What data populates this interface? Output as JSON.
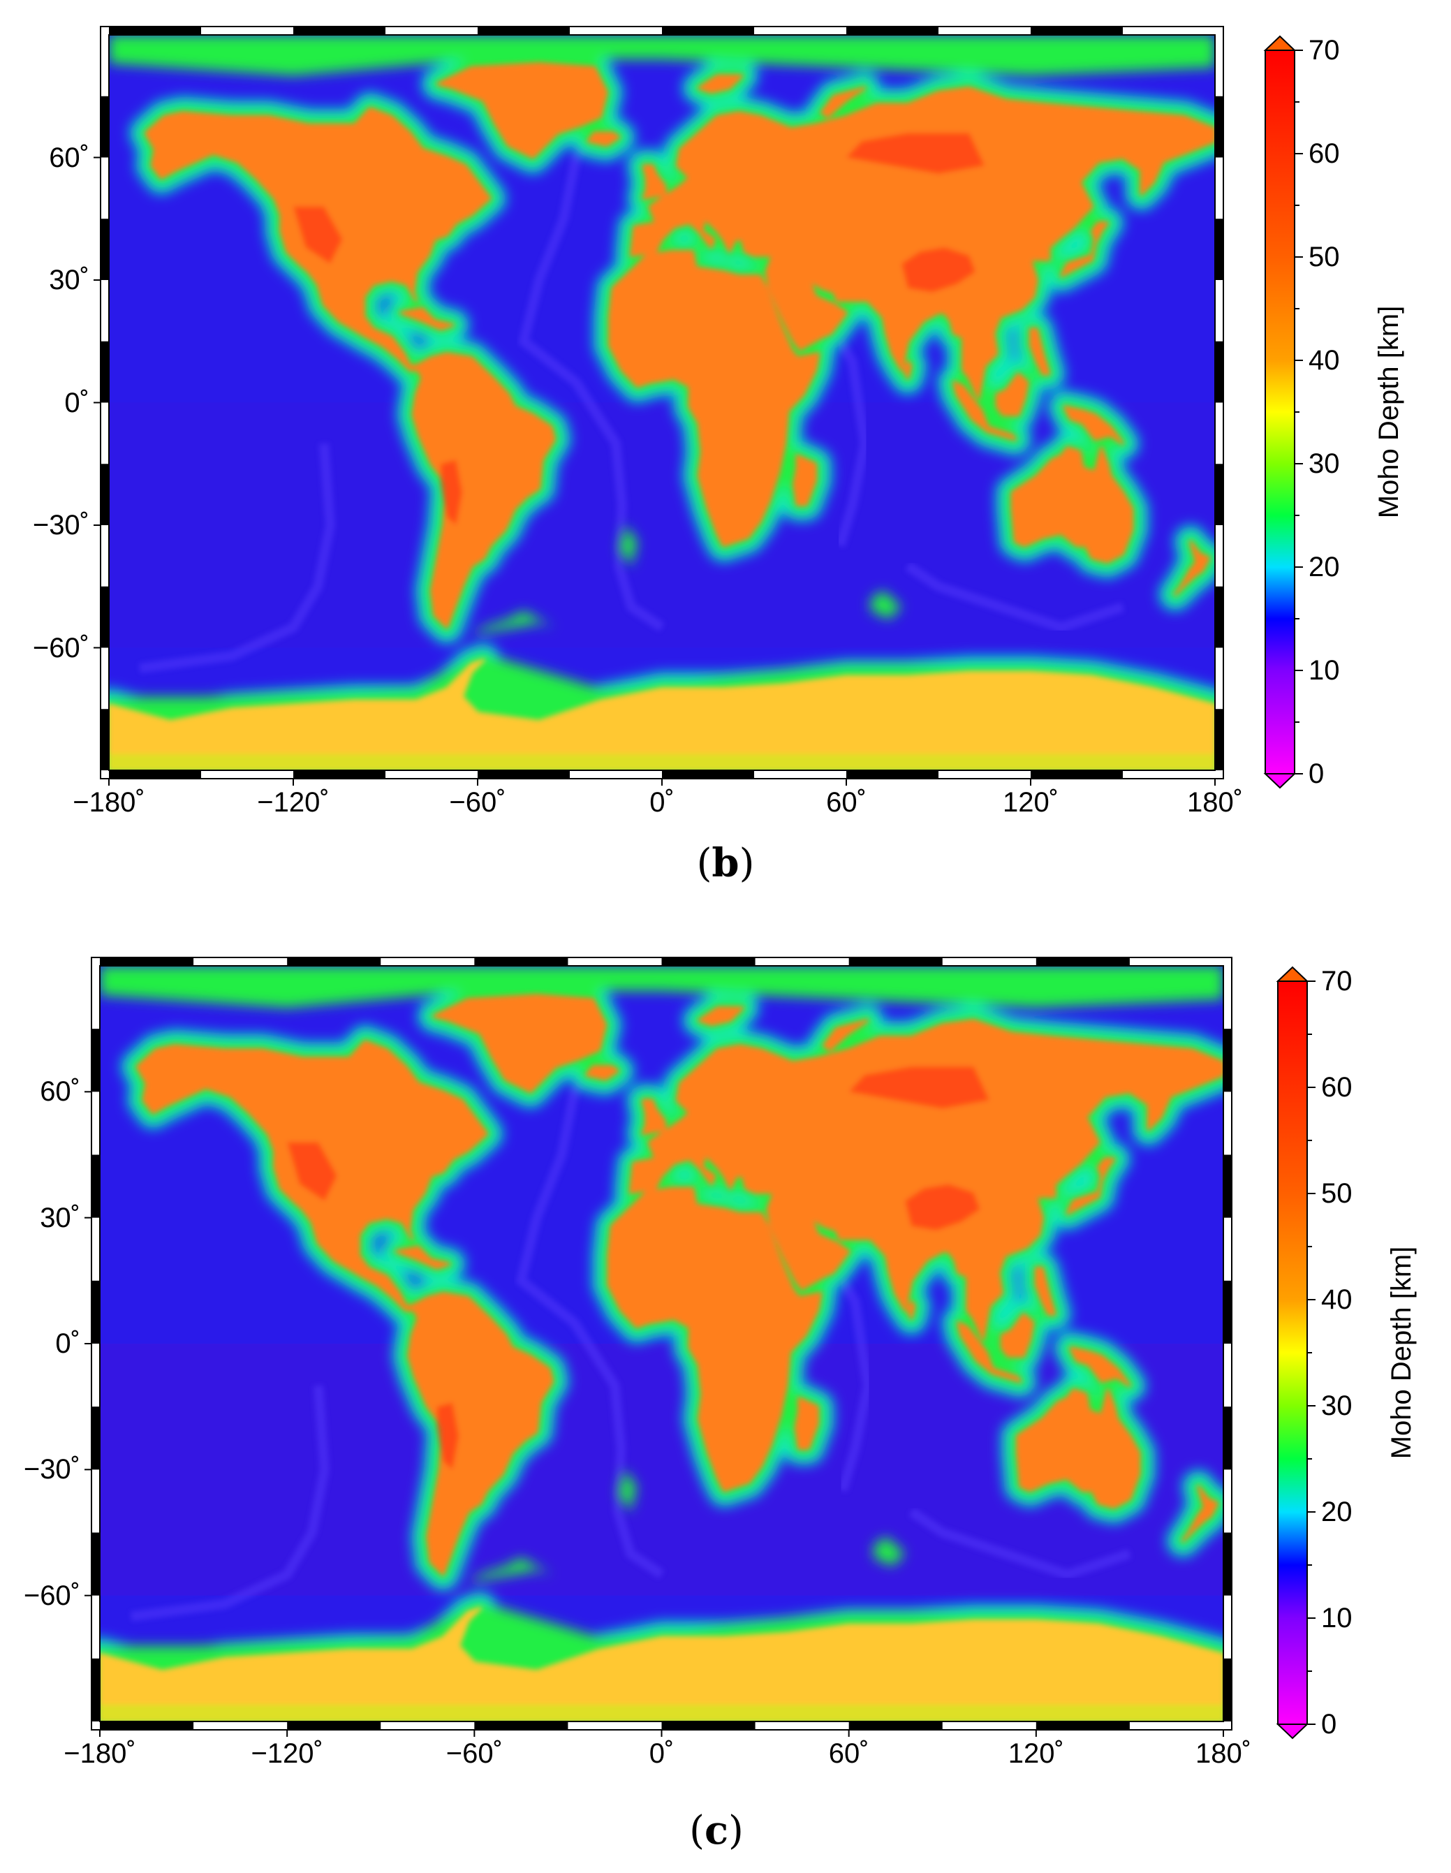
{
  "figure": {
    "colorbar": {
      "title": "Moho Depth [km]",
      "min": 0,
      "max": 70,
      "ticks": [
        0,
        10,
        20,
        30,
        40,
        50,
        60,
        70
      ],
      "stops": [
        {
          "v": 0,
          "c": "#ff00ff"
        },
        {
          "v": 10,
          "c": "#7f00ff"
        },
        {
          "v": 15,
          "c": "#0000ff"
        },
        {
          "v": 20,
          "c": "#00e0ff"
        },
        {
          "v": 25,
          "c": "#00ff40"
        },
        {
          "v": 30,
          "c": "#80ff00"
        },
        {
          "v": 35,
          "c": "#ffff00"
        },
        {
          "v": 40,
          "c": "#ffa000"
        },
        {
          "v": 50,
          "c": "#ff6000"
        },
        {
          "v": 70,
          "c": "#ff0000"
        }
      ]
    },
    "map_extent": {
      "lon": [
        -180,
        180
      ],
      "lat": [
        -90,
        90
      ]
    },
    "lon_ticks": [
      "−180˚",
      "−120˚",
      "−60˚",
      "0˚",
      "60˚",
      "120˚",
      "180˚"
    ],
    "lat_ticks": [
      "60˚",
      "30˚",
      "0˚",
      "−30˚",
      "−60˚"
    ],
    "panels": [
      {
        "id": "b",
        "letter": "b",
        "paren_open": "(",
        "paren_close": ")"
      },
      {
        "id": "c",
        "letter": "c",
        "paren_open": "(",
        "paren_close": ")"
      }
    ],
    "colors": {
      "ocean": "#2a1aea",
      "ocean_deep": "#4a10d8",
      "continent": "#ff7f1a",
      "continent_high": "#ff3a10",
      "shelf": "#22ee44",
      "antarctica": "#ffc830"
    }
  }
}
